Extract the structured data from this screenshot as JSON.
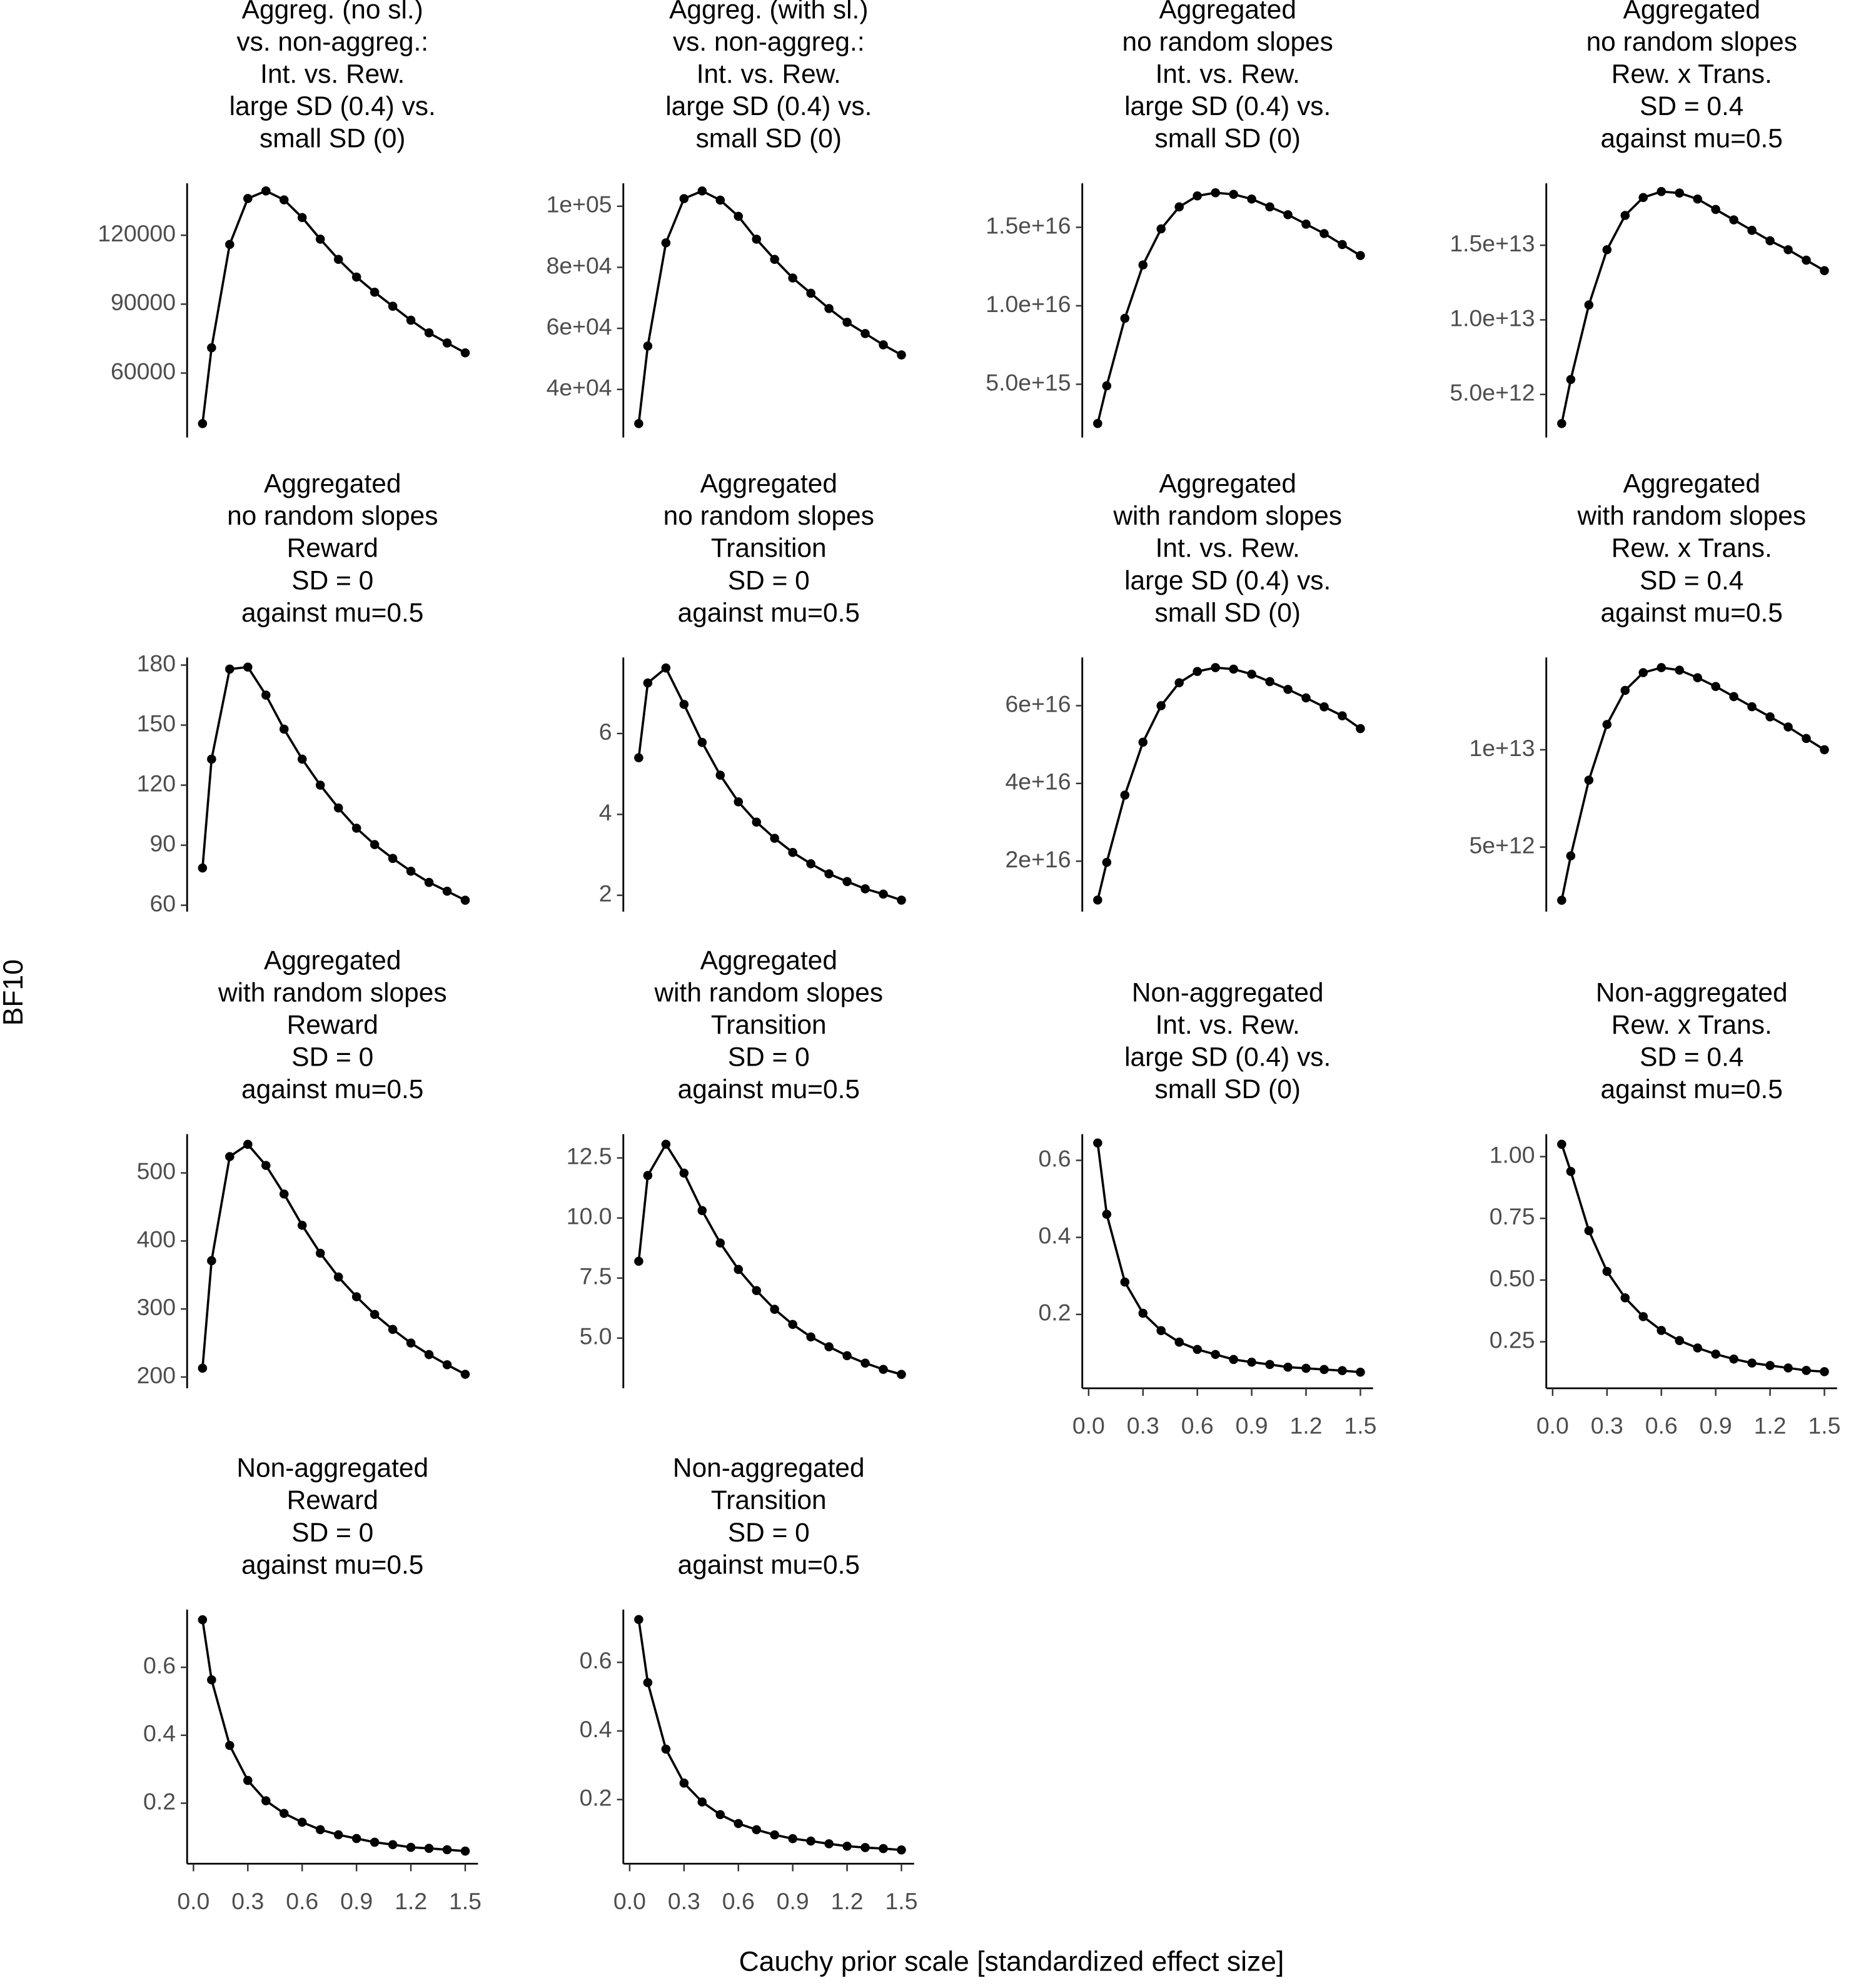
{
  "chart_data": [
    {
      "type": "line",
      "title": [
        "Aggreg. (no sl.)",
        "vs. non-aggreg.:",
        "Int. vs. Rew.",
        "large SD (0.4) vs.",
        "small SD (0)"
      ],
      "x": [
        0.05,
        0.1,
        0.2,
        0.3,
        0.4,
        0.5,
        0.6,
        0.7,
        0.8,
        0.9,
        1.0,
        1.1,
        1.2,
        1.3,
        1.4,
        1.5
      ],
      "values": [
        38000,
        71000,
        116000,
        136000,
        139300,
        135400,
        127700,
        118300,
        109500,
        101800,
        95200,
        89100,
        83000,
        77500,
        73100,
        68800
      ],
      "xlim": [
        -0.035,
        1.57
      ],
      "ylim": [
        33600,
        142600
      ],
      "yticks": [
        60000,
        90000,
        120000
      ],
      "color": "#000000"
    },
    {
      "type": "line",
      "title": [
        "Aggreg. (with sl.)",
        "vs. non-aggreg.:",
        "Int. vs. Rew.",
        "large SD (0.4) vs.",
        "small SD (0)"
      ],
      "x": [
        0.05,
        0.1,
        0.2,
        0.3,
        0.4,
        0.5,
        0.6,
        0.7,
        0.8,
        0.9,
        1.0,
        1.1,
        1.2,
        1.3,
        1.4,
        1.5
      ],
      "values": [
        28800,
        54200,
        88000,
        102500,
        105000,
        102000,
        96700,
        89200,
        82600,
        76500,
        71500,
        66500,
        62000,
        58300,
        54600,
        51300
      ],
      "xlim": [
        -0.035,
        1.57
      ],
      "ylim": [
        25500,
        107500
      ],
      "yticks": [
        {
          "value": 40000,
          "label": "4e+04"
        },
        {
          "value": 60000,
          "label": "6e+04"
        },
        {
          "value": 80000,
          "label": "8e+04"
        },
        {
          "value": 100000,
          "label": "1e+05"
        }
      ],
      "color": "#000000"
    },
    {
      "type": "line",
      "title": [
        "Aggregated",
        "no random slopes",
        "Int. vs. Rew.",
        "large SD (0.4) vs.",
        "small SD (0)"
      ],
      "x": [
        0.05,
        0.1,
        0.2,
        0.3,
        0.4,
        0.5,
        0.6,
        0.7,
        0.8,
        0.9,
        1.0,
        1.1,
        1.2,
        1.3,
        1.4,
        1.5
      ],
      "values": [
        2500000000000000.0,
        4900000000000000.0,
        9200000000000000.0,
        1.26e+16,
        1.49e+16,
        1.63e+16,
        1.7e+16,
        1.72e+16,
        1.71e+16,
        1.68e+16,
        1.63e+16,
        1.58e+16,
        1.52e+16,
        1.46e+16,
        1.39e+16,
        1.32e+16
      ],
      "xlim": [
        -0.035,
        1.57
      ],
      "ylim": [
        1850000000000000.0,
        1.78e+16
      ],
      "yticks": [
        {
          "value": 5000000000000000.0,
          "label": "5.0e+15"
        },
        {
          "value": 1e+16,
          "label": "1.0e+16"
        },
        {
          "value": 1.5e+16,
          "label": "1.5e+16"
        }
      ],
      "color": "#000000"
    },
    {
      "type": "line",
      "title": [
        "Aggregated",
        "no random slopes",
        "Rew. x Trans.",
        "SD = 0.4",
        "against mu=0.5"
      ],
      "x": [
        0.05,
        0.1,
        0.2,
        0.3,
        0.4,
        0.5,
        0.6,
        0.7,
        0.8,
        0.9,
        1.0,
        1.1,
        1.2,
        1.3,
        1.4,
        1.5
      ],
      "values": [
        3050000000000.0,
        6000000000000.0,
        11000000000000.0,
        14700000000000.0,
        17000000000000.0,
        18200000000000.0,
        18600000000000.0,
        18500000000000.0,
        18100000000000.0,
        17400000000000.0,
        16700000000000.0,
        16000000000000.0,
        15300000000000.0,
        14700000000000.0,
        14000000000000.0,
        13300000000000.0
      ],
      "xlim": [
        -0.035,
        1.57
      ],
      "ylim": [
        2370000000000.0,
        19150000000000.0
      ],
      "yticks": [
        {
          "value": 5000000000000.0,
          "label": "5.0e+12"
        },
        {
          "value": 10000000000000.0,
          "label": "1.0e+13"
        },
        {
          "value": 15000000000000.0,
          "label": "1.5e+13"
        }
      ],
      "color": "#000000"
    },
    {
      "type": "line",
      "title": [
        "Aggregated",
        "no random slopes",
        "Reward",
        "SD = 0",
        "against mu=0.5"
      ],
      "x": [
        0.05,
        0.1,
        0.2,
        0.3,
        0.4,
        0.5,
        0.6,
        0.7,
        0.8,
        0.9,
        1.0,
        1.1,
        1.2,
        1.3,
        1.4,
        1.5
      ],
      "values": [
        78.6,
        133,
        178,
        179,
        165,
        148,
        133,
        120,
        108.6,
        98.5,
        90.3,
        83.4,
        77,
        71.4,
        67,
        62.5
      ],
      "xlim": [
        -0.035,
        1.57
      ],
      "ylim": [
        58.7,
        183.8
      ],
      "yticks": [
        60,
        90,
        120,
        150,
        180
      ],
      "color": "#000000"
    },
    {
      "type": "line",
      "title": [
        "Aggregated",
        "no random slopes",
        "Transition",
        "SD = 0",
        "against mu=0.5"
      ],
      "x": [
        0.05,
        0.1,
        0.2,
        0.3,
        0.4,
        0.5,
        0.6,
        0.7,
        0.8,
        0.9,
        1.0,
        1.1,
        1.2,
        1.3,
        1.4,
        1.5
      ],
      "values": [
        5.4,
        7.25,
        7.62,
        6.72,
        5.78,
        4.97,
        4.31,
        3.81,
        3.41,
        3.06,
        2.78,
        2.53,
        2.34,
        2.16,
        2.03,
        1.88
      ],
      "xlim": [
        -0.035,
        1.57
      ],
      "ylim": [
        1.69,
        7.88
      ],
      "yticks": [
        2,
        4,
        6
      ],
      "color": "#000000"
    },
    {
      "type": "line",
      "title": [
        "Aggregated",
        "with random slopes",
        "Int. vs. Rew.",
        "large SD (0.4) vs.",
        "small SD (0)"
      ],
      "x": [
        0.05,
        0.1,
        0.2,
        0.3,
        0.4,
        0.5,
        0.6,
        0.7,
        0.8,
        0.9,
        1.0,
        1.1,
        1.2,
        1.3,
        1.4,
        1.5
      ],
      "values": [
        1e+16,
        1.97e+16,
        3.7e+16,
        5.06e+16,
        6e+16,
        6.59e+16,
        6.88e+16,
        6.98e+16,
        6.94e+16,
        6.81e+16,
        6.62e+16,
        6.42e+16,
        6.2e+16,
        5.97e+16,
        5.74e+16,
        5.41e+16
      ],
      "xlim": [
        -0.035,
        1.57
      ],
      "ylim": [
        8000000000000000.0,
        7.24e+16
      ],
      "yticks": [
        {
          "value": 2e+16,
          "label": "2e+16"
        },
        {
          "value": 4e+16,
          "label": "4e+16"
        },
        {
          "value": 6e+16,
          "label": "6e+16"
        }
      ],
      "color": "#000000"
    },
    {
      "type": "line",
      "title": [
        "Aggregated",
        "with random slopes",
        "Rew. x Trans.",
        "SD = 0.4",
        "against mu=0.5"
      ],
      "x": [
        0.05,
        0.1,
        0.2,
        0.3,
        0.4,
        0.5,
        0.6,
        0.7,
        0.8,
        0.9,
        1.0,
        1.1,
        1.2,
        1.3,
        1.4,
        1.5
      ],
      "values": [
        2270000000000.0,
        4550000000000.0,
        8440000000000.0,
        11300000000000.0,
        13050000000000.0,
        13960000000000.0,
        14220000000000.0,
        14090000000000.0,
        13700000000000.0,
        13250000000000.0,
        12730000000000.0,
        12210000000000.0,
        11690000000000.0,
        11170000000000.0,
        10580000000000.0,
        10000000000000.0
      ],
      "xlim": [
        -0.035,
        1.57
      ],
      "ylim": [
        1880000000000.0,
        14740000000000.0
      ],
      "yticks": [
        {
          "value": 5000000000000.0,
          "label": "5e+12"
        },
        {
          "value": 10000000000000.0,
          "label": "1e+13"
        }
      ],
      "color": "#000000"
    },
    {
      "type": "line",
      "title": [
        "Aggregated",
        "with random slopes",
        "Reward",
        "SD = 0",
        "against mu=0.5"
      ],
      "x": [
        0.05,
        0.1,
        0.2,
        0.3,
        0.4,
        0.5,
        0.6,
        0.7,
        0.8,
        0.9,
        1.0,
        1.1,
        1.2,
        1.3,
        1.4,
        1.5
      ],
      "values": [
        213,
        371,
        524,
        542,
        511,
        469,
        423,
        382,
        347,
        318,
        292,
        270,
        250,
        233,
        218,
        204
      ],
      "xlim": [
        -0.035,
        1.57
      ],
      "ylim": [
        189,
        557
      ],
      "yticks": [
        200,
        300,
        400,
        500
      ],
      "color": "#000000"
    },
    {
      "type": "line",
      "title": [
        "Aggregated",
        "with random slopes",
        "Transition",
        "SD = 0",
        "against mu=0.5"
      ],
      "x": [
        0.05,
        0.1,
        0.2,
        0.3,
        0.4,
        0.5,
        0.6,
        0.7,
        0.8,
        0.9,
        1.0,
        1.1,
        1.2,
        1.3,
        1.4,
        1.5
      ],
      "values": [
        8.2,
        11.77,
        13.07,
        11.87,
        10.31,
        8.96,
        7.86,
        6.98,
        6.2,
        5.57,
        5.05,
        4.64,
        4.27,
        3.96,
        3.7,
        3.49
      ],
      "xlim": [
        -0.035,
        1.57
      ],
      "ylim": [
        3.07,
        13.49
      ],
      "yticks": [
        {
          "value": 5,
          "label": "5.0"
        },
        7.5,
        {
          "value": 10,
          "label": "10.0"
        },
        12.5
      ],
      "color": "#000000"
    },
    {
      "type": "line",
      "title": [
        "Non-aggregated",
        "Int. vs. Rew.",
        "large SD (0.4) vs.",
        "small SD (0)"
      ],
      "x": [
        0.05,
        0.1,
        0.2,
        0.3,
        0.4,
        0.5,
        0.6,
        0.7,
        0.8,
        0.9,
        1.0,
        1.1,
        1.2,
        1.3,
        1.4,
        1.5
      ],
      "values": [
        0.645,
        0.46,
        0.284,
        0.203,
        0.158,
        0.128,
        0.109,
        0.096,
        0.083,
        0.076,
        0.07,
        0.063,
        0.06,
        0.057,
        0.054,
        0.05
      ],
      "xlim": [
        -0.035,
        1.57
      ],
      "ylim": [
        0.018,
        0.668
      ],
      "yticks": [
        0.2,
        0.4,
        0.6
      ],
      "xticks": [
        {
          "value": 0,
          "label": "0.0"
        },
        0.3,
        0.6,
        0.9,
        1.2,
        1.5
      ],
      "color": "#000000"
    },
    {
      "type": "line",
      "title": [
        "Non-aggregated",
        "Rew. x Trans.",
        "SD = 0.4",
        "against mu=0.5"
      ],
      "x": [
        0.05,
        0.1,
        0.2,
        0.3,
        0.4,
        0.5,
        0.6,
        0.7,
        0.8,
        0.9,
        1.0,
        1.1,
        1.2,
        1.3,
        1.4,
        1.5
      ],
      "values": [
        1.05,
        0.94,
        0.7,
        0.535,
        0.428,
        0.352,
        0.296,
        0.255,
        0.225,
        0.2,
        0.18,
        0.164,
        0.154,
        0.144,
        0.134,
        0.129
      ],
      "xlim": [
        -0.035,
        1.57
      ],
      "ylim": [
        0.077,
        1.091
      ],
      "yticks": [
        0.25,
        {
          "value": 0.5,
          "label": "0.50"
        },
        0.75,
        {
          "value": 1,
          "label": "1.00"
        }
      ],
      "xticks": [
        {
          "value": 0,
          "label": "0.0"
        },
        0.3,
        0.6,
        0.9,
        1.2,
        1.5
      ],
      "color": "#000000"
    },
    {
      "type": "line",
      "title": [
        "Non-aggregated",
        "Reward",
        "SD = 0",
        "against mu=0.5"
      ],
      "x": [
        0.05,
        0.1,
        0.2,
        0.3,
        0.4,
        0.5,
        0.6,
        0.7,
        0.8,
        0.9,
        1.0,
        1.1,
        1.2,
        1.3,
        1.4,
        1.5
      ],
      "values": [
        0.74,
        0.563,
        0.37,
        0.267,
        0.207,
        0.17,
        0.144,
        0.122,
        0.107,
        0.096,
        0.085,
        0.078,
        0.07,
        0.067,
        0.063,
        0.059
      ],
      "xlim": [
        -0.035,
        1.57
      ],
      "ylim": [
        0.033,
        0.77
      ],
      "yticks": [
        0.2,
        0.4,
        0.6
      ],
      "xticks": [
        {
          "value": 0,
          "label": "0.0"
        },
        0.3,
        0.6,
        0.9,
        1.2,
        1.5
      ],
      "color": "#000000"
    },
    {
      "type": "line",
      "title": [
        "Non-aggregated",
        "Transition",
        "SD = 0",
        "against mu=0.5"
      ],
      "x": [
        0.05,
        0.1,
        0.2,
        0.3,
        0.4,
        0.5,
        0.6,
        0.7,
        0.8,
        0.9,
        1.0,
        1.1,
        1.2,
        1.3,
        1.4,
        1.5
      ],
      "values": [
        0.725,
        0.541,
        0.347,
        0.248,
        0.193,
        0.156,
        0.13,
        0.112,
        0.097,
        0.086,
        0.079,
        0.071,
        0.064,
        0.06,
        0.057,
        0.053
      ],
      "xlim": [
        -0.035,
        1.57
      ],
      "ylim": [
        0.024,
        0.754
      ],
      "yticks": [
        0.2,
        0.4,
        0.6
      ],
      "xticks": [
        {
          "value": 0,
          "label": "0.0"
        },
        0.3,
        0.6,
        0.9,
        1.2,
        1.5
      ],
      "color": "#000000"
    }
  ],
  "xlabel": "Cauchy prior scale [standardized effect size]",
  "ylabel": "BF10"
}
